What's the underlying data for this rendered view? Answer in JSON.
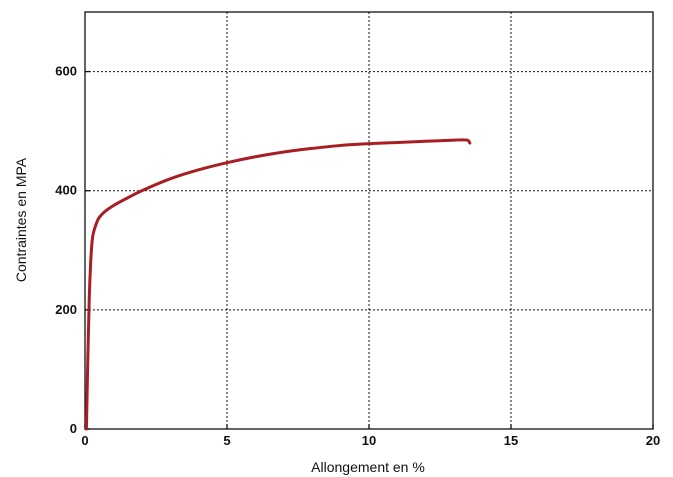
{
  "chart_data": {
    "type": "line",
    "title": "",
    "xlabel": "Allongement en %",
    "ylabel": "Contraintes en MPA",
    "xlim": [
      0,
      20
    ],
    "ylim": [
      0,
      700
    ],
    "x_ticks": [
      "0",
      "5",
      "10",
      "15",
      "20"
    ],
    "y_ticks": [
      "0",
      "200",
      "400",
      "600"
    ],
    "x_tick_values": [
      0,
      5,
      10,
      15,
      20
    ],
    "y_tick_values": [
      0,
      200,
      400,
      600
    ],
    "grid": true,
    "legend": "none",
    "series": [
      {
        "color": "#a81e24",
        "x": [
          0.05,
          0.1,
          0.15,
          0.2,
          0.25,
          0.3,
          0.4,
          0.5,
          0.7,
          1.0,
          1.5,
          2.0,
          3.0,
          4.0,
          5.0,
          6.0,
          7.0,
          8.0,
          9.0,
          10.0,
          11.0,
          12.0,
          13.0,
          13.45,
          13.55
        ],
        "y": [
          0,
          120,
          220,
          280,
          315,
          330,
          345,
          355,
          365,
          375,
          388,
          400,
          420,
          435,
          447,
          457,
          465,
          471,
          476,
          479,
          481,
          483,
          485,
          485,
          480
        ]
      }
    ]
  }
}
